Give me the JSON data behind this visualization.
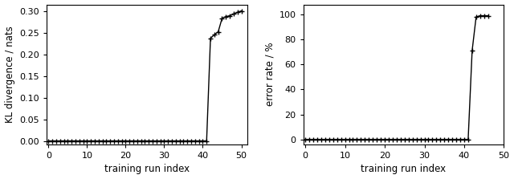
{
  "left": {
    "xlabel": "training run index",
    "ylabel": "KL divergence / nats",
    "xlim": [
      -0.5,
      51.5
    ],
    "ylim": [
      -0.008,
      0.315
    ],
    "yticks": [
      0.0,
      0.05,
      0.1,
      0.15,
      0.2,
      0.25,
      0.3
    ],
    "xticks": [
      0,
      10,
      20,
      30,
      40,
      50
    ],
    "x": [
      0,
      1,
      2,
      3,
      4,
      5,
      6,
      7,
      8,
      9,
      10,
      11,
      12,
      13,
      14,
      15,
      16,
      17,
      18,
      19,
      20,
      21,
      22,
      23,
      24,
      25,
      26,
      27,
      28,
      29,
      30,
      31,
      32,
      33,
      34,
      35,
      36,
      37,
      38,
      39,
      40,
      41,
      42,
      43,
      44,
      45,
      46,
      47,
      48,
      49,
      50
    ],
    "y": [
      0.0,
      0.0,
      0.0,
      0.0,
      0.0,
      0.0,
      0.0,
      0.0,
      0.0,
      0.0,
      0.0,
      0.0,
      0.0,
      0.0,
      0.0,
      0.0,
      0.0,
      0.0,
      0.0,
      0.0,
      0.0,
      0.0,
      0.0,
      0.0,
      0.0,
      0.0,
      0.0,
      0.0,
      0.0,
      0.0,
      0.0,
      0.0,
      0.0,
      0.0,
      0.0,
      0.0,
      0.0,
      0.0,
      0.0,
      0.0,
      0.0,
      0.0,
      0.237,
      0.245,
      0.252,
      0.283,
      0.287,
      0.289,
      0.293,
      0.297,
      0.3
    ]
  },
  "right": {
    "xlabel": "training run index",
    "ylabel": "error rate / %",
    "xlim": [
      -0.5,
      47
    ],
    "ylim": [
      -4,
      108
    ],
    "yticks": [
      0,
      20,
      40,
      60,
      80,
      100
    ],
    "xticks": [
      0,
      10,
      20,
      30,
      40,
      50
    ],
    "x": [
      0,
      1,
      2,
      3,
      4,
      5,
      6,
      7,
      8,
      9,
      10,
      11,
      12,
      13,
      14,
      15,
      16,
      17,
      18,
      19,
      20,
      21,
      22,
      23,
      24,
      25,
      26,
      27,
      28,
      29,
      30,
      31,
      32,
      33,
      34,
      35,
      36,
      37,
      38,
      39,
      40,
      41,
      42,
      43,
      44,
      45,
      46
    ],
    "y": [
      0,
      0,
      0,
      0,
      0,
      0,
      0,
      0,
      0,
      0,
      0,
      0,
      0,
      0,
      0,
      0,
      0,
      0,
      0,
      0,
      0,
      0,
      0,
      0,
      0,
      0,
      0,
      0,
      0,
      0,
      0,
      0,
      0,
      0,
      0,
      0,
      0,
      0,
      0,
      0,
      0,
      0,
      71,
      98,
      99,
      99,
      99
    ]
  },
  "line_color": "#000000",
  "marker": "+",
  "markersize": 4.5,
  "linewidth": 1.0,
  "markeredgewidth": 1.0,
  "tick_labelsize": 8,
  "label_fontsize": 8.5
}
